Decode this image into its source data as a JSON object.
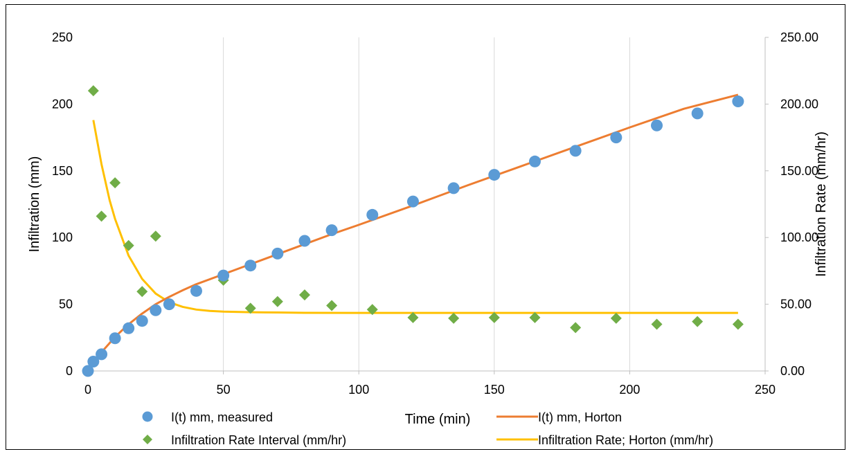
{
  "chart_data": {
    "type": "scatter",
    "xlabel": "Time (min)",
    "ylabel": "Infiltration (mm)",
    "y2label": "Infiltration Rate (mm/hr)",
    "xlim": [
      0,
      250
    ],
    "ylim": [
      0,
      250
    ],
    "y2lim": [
      0,
      250
    ],
    "x_ticks": [
      "0",
      "50",
      "100",
      "150",
      "200",
      "250"
    ],
    "y_ticks": [
      "0",
      "50",
      "100",
      "150",
      "200",
      "250"
    ],
    "y2_ticks": [
      "0.00",
      "50.00",
      "100.00",
      "150.00",
      "200.00",
      "250.00"
    ],
    "grid": "vertical",
    "legend_position": "bottom",
    "colors": {
      "measured": "#5b9bd5",
      "horton_cumulative": "#ed7d31",
      "rate_interval": "#70ad47",
      "rate_horton": "#ffc000"
    },
    "series": [
      {
        "name": "I(t) mm, measured",
        "kind": "circle-markers",
        "axis": "left",
        "x": [
          0,
          2,
          5,
          10,
          15,
          20,
          25,
          30,
          40,
          50,
          60,
          70,
          80,
          90,
          105,
          120,
          135,
          150,
          165,
          180,
          195,
          210,
          225,
          240
        ],
        "y": [
          0,
          7,
          12.5,
          24.5,
          32,
          37.5,
          45.5,
          50,
          60,
          71.5,
          79,
          88,
          97.5,
          105.5,
          117,
          127,
          137,
          147,
          157,
          165,
          175,
          184,
          193,
          202
        ]
      },
      {
        "name": "I(t) mm, Horton",
        "kind": "line",
        "axis": "left",
        "x": [
          2,
          5,
          10,
          15,
          20,
          25,
          30,
          35,
          40,
          50,
          60,
          70,
          80,
          90,
          100,
          120,
          140,
          160,
          180,
          200,
          220,
          240
        ],
        "y": [
          6,
          14,
          25.5,
          35,
          43,
          50,
          55.5,
          60.5,
          65,
          72.5,
          80,
          87.5,
          95,
          102.5,
          109.5,
          124,
          139,
          153.5,
          168,
          182.5,
          196.5,
          207
        ]
      },
      {
        "name": "Infiltration Rate Interval (mm/hr)",
        "kind": "diamond-markers",
        "axis": "right",
        "x": [
          2,
          5,
          10,
          15,
          20,
          25,
          30,
          40,
          50,
          60,
          70,
          80,
          90,
          105,
          120,
          135,
          150,
          165,
          180,
          195,
          210,
          225,
          240
        ],
        "y": [
          210,
          116,
          141,
          94,
          59.5,
          101,
          50,
          60.5,
          68,
          47,
          52,
          57,
          49,
          46,
          40,
          39.5,
          40,
          40,
          32.5,
          39.5,
          35,
          37,
          35
        ]
      },
      {
        "name": "Infiltration Rate; Horton (mm/hr)",
        "kind": "line",
        "axis": "right",
        "x": [
          2,
          5,
          8,
          10,
          15,
          20,
          25,
          30,
          35,
          40,
          45,
          50,
          60,
          70,
          80,
          100,
          150,
          200,
          240
        ],
        "y": [
          188,
          155,
          128,
          114,
          86.5,
          69,
          58,
          51.5,
          48,
          46,
          45,
          44.5,
          44,
          43.8,
          43.6,
          43.5,
          43.5,
          43.5,
          43.5
        ]
      }
    ]
  }
}
